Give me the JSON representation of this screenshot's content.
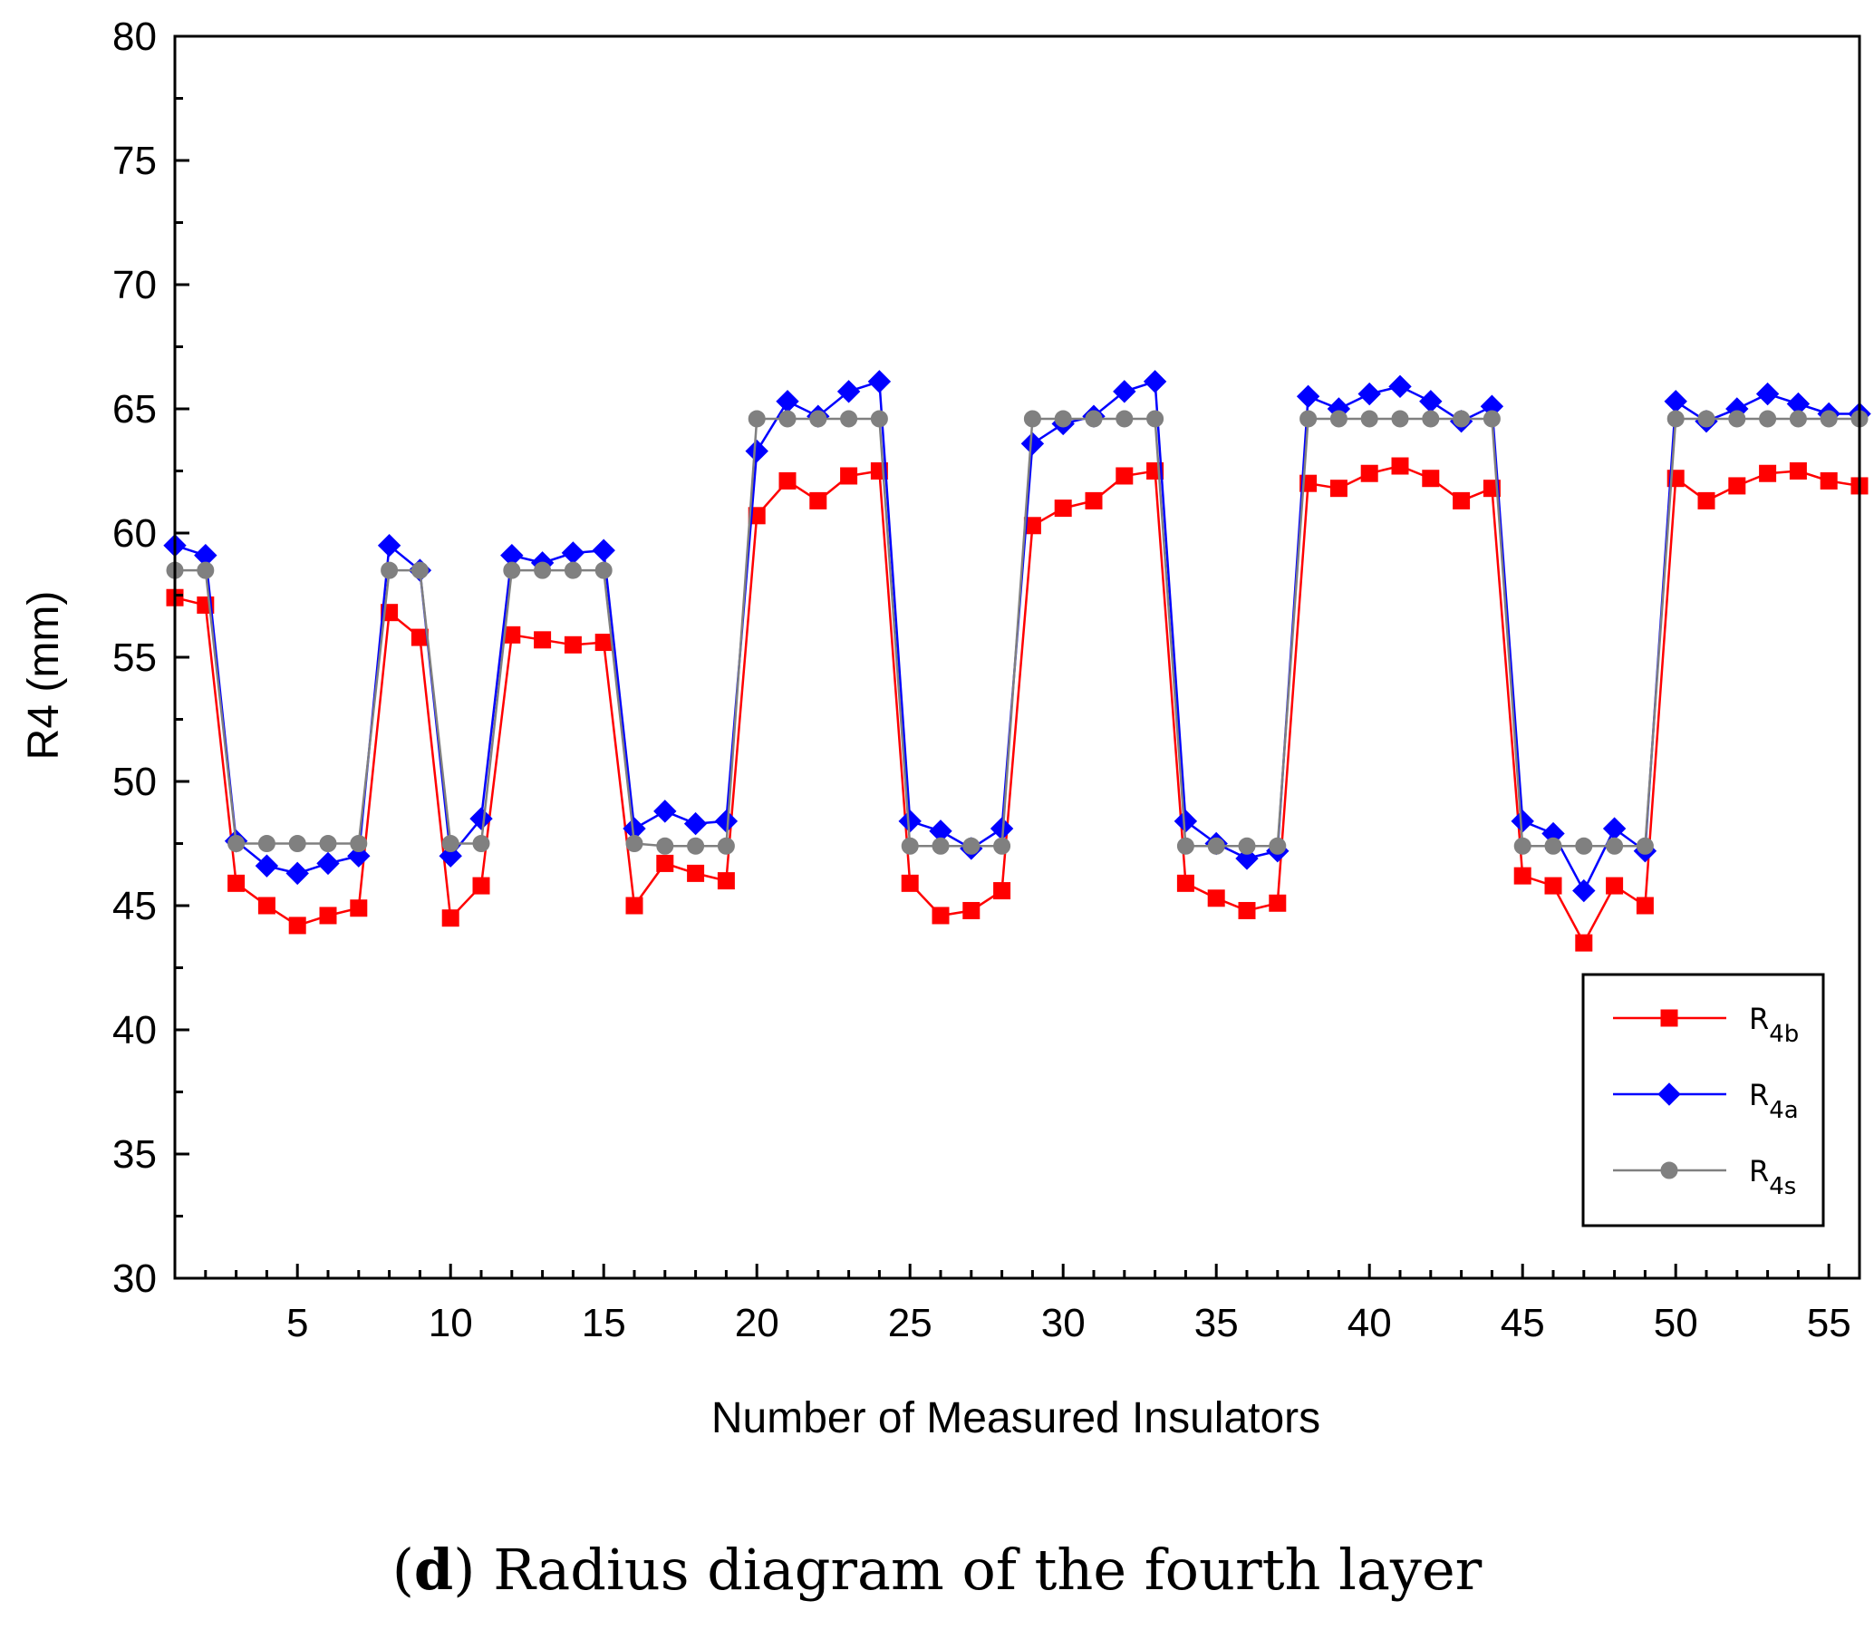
{
  "chart_data": {
    "type": "line",
    "xlabel": "Number of Measured Insulators",
    "ylabel": "R4 (mm)",
    "xlim": [
      1,
      56
    ],
    "ylim": [
      30,
      80
    ],
    "x_ticks": [
      5,
      10,
      15,
      20,
      25,
      30,
      35,
      40,
      45,
      50,
      55
    ],
    "y_ticks": [
      30,
      35,
      40,
      45,
      50,
      55,
      60,
      65,
      70,
      75,
      80
    ],
    "legend_position": "bottom-right",
    "x": [
      1,
      2,
      3,
      4,
      5,
      6,
      7,
      8,
      9,
      10,
      11,
      12,
      13,
      14,
      15,
      16,
      17,
      18,
      19,
      20,
      21,
      22,
      23,
      24,
      25,
      26,
      27,
      28,
      29,
      30,
      31,
      32,
      33,
      34,
      35,
      36,
      37,
      38,
      39,
      40,
      41,
      42,
      43,
      44,
      45,
      46,
      47,
      48,
      49,
      50,
      51,
      52,
      53,
      54,
      55,
      56
    ],
    "series": [
      {
        "name": "R4b",
        "label_main": "R",
        "label_sub": "4b",
        "color": "#ff0000",
        "marker": "square",
        "values": [
          57.4,
          57.1,
          45.9,
          45.0,
          44.2,
          44.6,
          44.9,
          56.8,
          55.8,
          44.5,
          45.8,
          55.9,
          55.7,
          55.5,
          55.6,
          45.0,
          46.7,
          46.3,
          46.0,
          60.7,
          62.1,
          61.3,
          62.3,
          62.5,
          45.9,
          44.6,
          44.8,
          45.6,
          60.3,
          61.0,
          61.3,
          62.3,
          62.5,
          45.9,
          45.3,
          44.8,
          45.1,
          62.0,
          61.8,
          62.4,
          62.7,
          62.2,
          61.3,
          61.8,
          46.2,
          45.8,
          43.5,
          45.8,
          45.0,
          62.2,
          61.3,
          61.9,
          62.4,
          62.5,
          62.1,
          61.9
        ]
      },
      {
        "name": "R4a",
        "label_main": "R",
        "label_sub": "4a",
        "color": "#0000ff",
        "marker": "diamond",
        "values": [
          59.5,
          59.1,
          47.6,
          46.6,
          46.3,
          46.7,
          47.0,
          59.5,
          58.5,
          47.0,
          48.5,
          59.1,
          58.8,
          59.2,
          59.3,
          48.1,
          48.8,
          48.3,
          48.4,
          63.3,
          65.3,
          64.7,
          65.7,
          66.1,
          48.4,
          48.0,
          47.3,
          48.1,
          63.6,
          64.4,
          64.7,
          65.7,
          66.1,
          48.4,
          47.5,
          46.9,
          47.2,
          65.5,
          65.0,
          65.6,
          65.9,
          65.3,
          64.5,
          65.1,
          48.4,
          47.9,
          45.6,
          48.1,
          47.2,
          65.3,
          64.5,
          65.0,
          65.6,
          65.2,
          64.8,
          64.8
        ]
      },
      {
        "name": "R4s",
        "label_main": "R",
        "label_sub": "4s",
        "color": "#808080",
        "marker": "circle",
        "values": [
          58.5,
          58.5,
          47.5,
          47.5,
          47.5,
          47.5,
          47.5,
          58.5,
          58.5,
          47.5,
          47.5,
          58.5,
          58.5,
          58.5,
          58.5,
          47.5,
          47.4,
          47.4,
          47.4,
          64.6,
          64.6,
          64.6,
          64.6,
          64.6,
          47.4,
          47.4,
          47.4,
          47.4,
          64.6,
          64.6,
          64.6,
          64.6,
          64.6,
          47.4,
          47.4,
          47.4,
          47.4,
          64.6,
          64.6,
          64.6,
          64.6,
          64.6,
          64.6,
          64.6,
          47.4,
          47.4,
          47.4,
          47.4,
          47.4,
          64.6,
          64.6,
          64.6,
          64.6,
          64.6,
          64.6,
          64.6
        ]
      }
    ]
  },
  "caption": {
    "letter": "(d)",
    "letter_open": "(",
    "letter_bold": "d",
    "letter_close": ")",
    "text": " Radius diagram of the fourth layer"
  }
}
